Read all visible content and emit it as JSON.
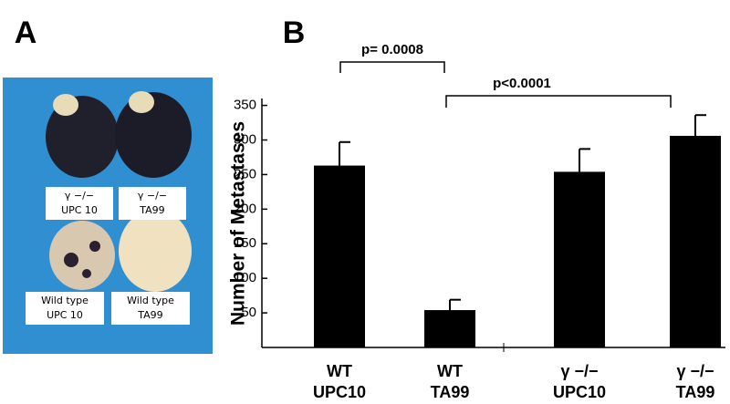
{
  "panel_a": {
    "label": "A",
    "tags": [
      [
        "γ −/−",
        "UPC 10"
      ],
      [
        "γ −/−",
        "TA99"
      ],
      [
        "Wild type",
        "UPC 10"
      ],
      [
        "Wild type",
        "TA99"
      ]
    ]
  },
  "chart_data": {
    "type": "bar",
    "panel_label": "B",
    "y_label": "Number of Metastases",
    "categories": [
      [
        "WT",
        "UPC10"
      ],
      [
        "WT",
        "TA99"
      ],
      [
        "γ −/−",
        "UPC10"
      ],
      [
        "γ −/−",
        "TA99"
      ]
    ],
    "values": [
      263,
      54,
      254,
      306
    ],
    "errors": [
      34,
      15,
      33,
      30
    ],
    "color": "#000000",
    "ylim": [
      0,
      360
    ],
    "yticks": [
      50,
      100,
      150,
      200,
      250,
      300,
      350
    ],
    "annotations": [
      {
        "text": "p= 0.0008"
      },
      {
        "text": "p<0.0001"
      }
    ]
  }
}
